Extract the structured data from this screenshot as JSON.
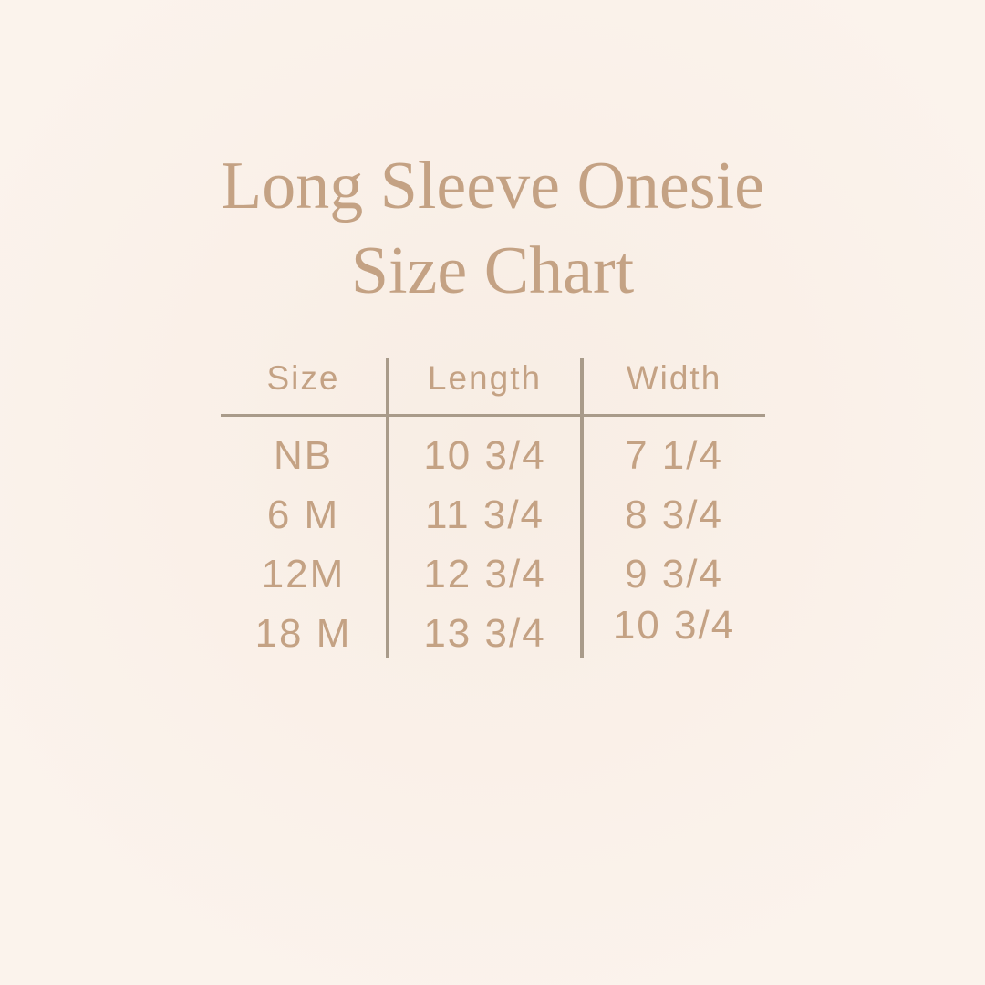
{
  "title": {
    "line1": "Long Sleeve Onesie",
    "line2": "Size Chart"
  },
  "chart_data": {
    "type": "table",
    "title": "Long Sleeve Onesie Size Chart",
    "columns": [
      "Size",
      "Length",
      "Width"
    ],
    "rows": [
      [
        "NB",
        "10 3/4",
        "7 1/4"
      ],
      [
        "6 M",
        "11 3/4",
        "8 3/4"
      ],
      [
        "12M",
        "12 3/4",
        "9 3/4"
      ],
      [
        "18 M",
        "13 3/4",
        "10 3/4"
      ]
    ]
  },
  "colors": {
    "background": "#fbf3ec",
    "background_center": "#f8ede4",
    "text": "#c4a284",
    "divider_line": "#a99b8a"
  }
}
